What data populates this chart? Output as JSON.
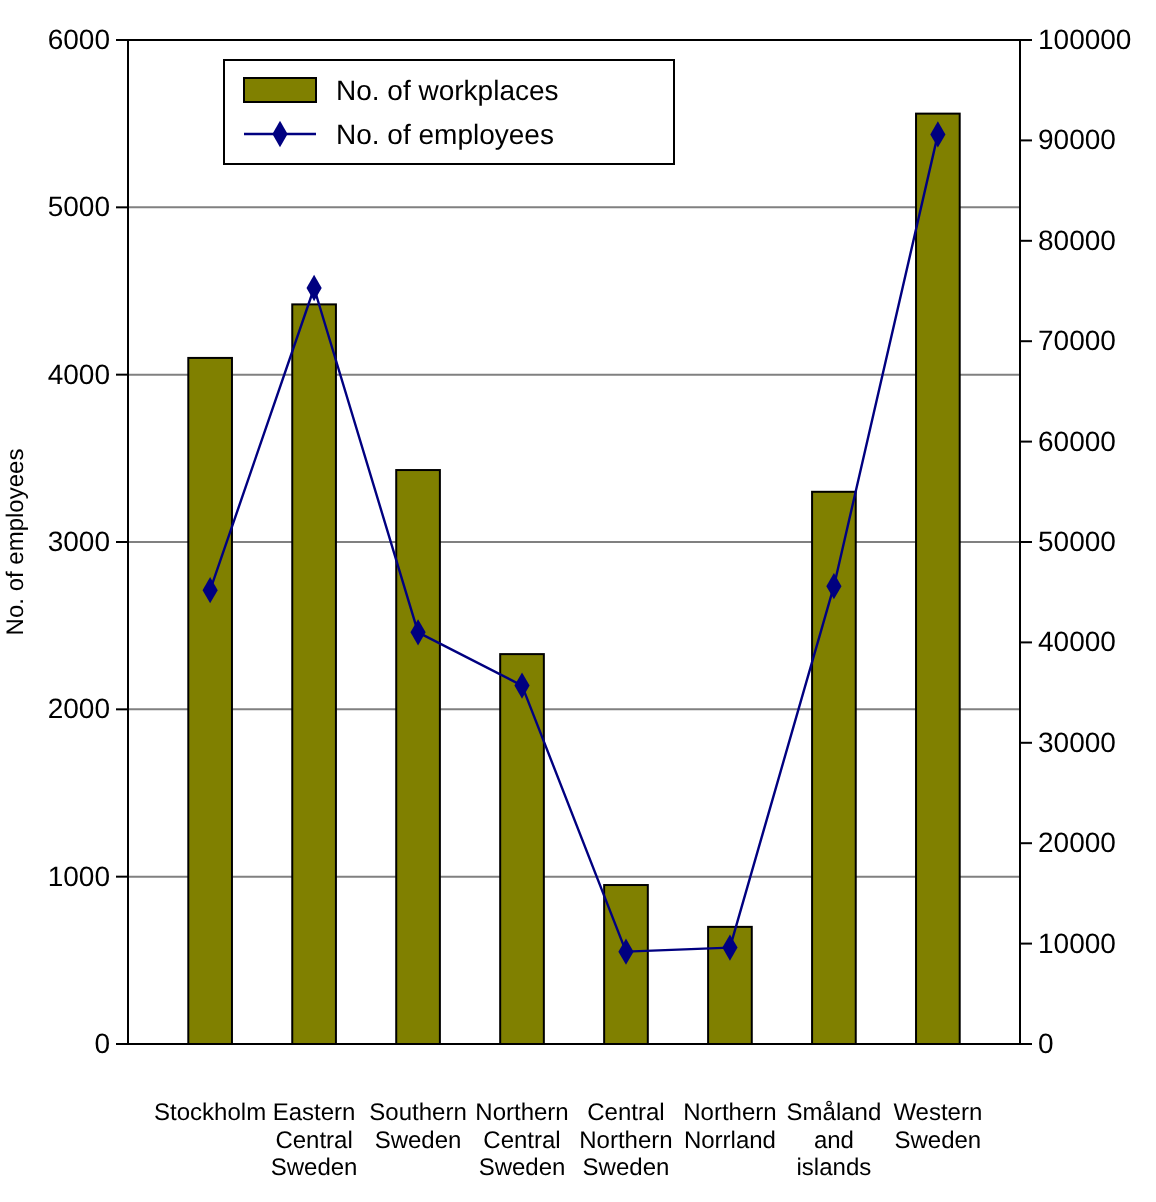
{
  "chart_data": {
    "type": "bar",
    "ylabel": "No. of employees",
    "categories": [
      "Stockholm",
      "Eastern Central Sweden",
      "Southern Sweden",
      "Northern Central Sweden",
      "Central Northern Sweden",
      "Northern Norrland",
      "Småland and islands",
      "Western Sweden"
    ],
    "series": [
      {
        "name": "No. of workplaces",
        "color": "#808000",
        "values": [
          4100,
          4420,
          3430,
          2330,
          950,
          700,
          3300,
          5560
        ]
      },
      {
        "name": "No. of employees",
        "type": "line",
        "axis": "y2",
        "color": "#000080",
        "marker": "diamond",
        "values": [
          45200,
          75300,
          41000,
          35700,
          9200,
          9600,
          45600,
          90600
        ]
      }
    ],
    "ylim": [
      0,
      6000
    ],
    "yticks": [
      0,
      1000,
      2000,
      3000,
      4000,
      5000,
      6000
    ],
    "y2lim": [
      0,
      100000
    ],
    "y2ticks": [
      0,
      10000,
      20000,
      30000,
      40000,
      50000,
      60000,
      70000,
      80000,
      90000,
      100000
    ],
    "grid": "y",
    "legend": "top left"
  }
}
